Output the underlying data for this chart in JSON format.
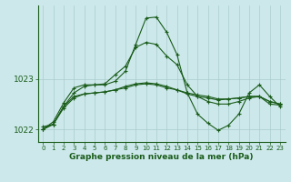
{
  "x": [
    0,
    1,
    2,
    3,
    4,
    5,
    6,
    7,
    8,
    9,
    10,
    11,
    12,
    13,
    14,
    15,
    16,
    17,
    18,
    19,
    20,
    21,
    22,
    23
  ],
  "line1": [
    1022.05,
    1022.1,
    1022.45,
    1022.65,
    1022.7,
    1022.72,
    1022.74,
    1022.78,
    1022.82,
    1022.88,
    1022.9,
    1022.88,
    1022.82,
    1022.78,
    1022.72,
    1022.68,
    1022.65,
    1022.6,
    1022.6,
    1022.62,
    1022.65,
    1022.65,
    1022.55,
    1022.5
  ],
  "line2": [
    1022.0,
    1022.1,
    1022.42,
    1022.62,
    1022.7,
    1022.72,
    1022.74,
    1022.78,
    1022.85,
    1022.9,
    1022.92,
    1022.9,
    1022.85,
    1022.78,
    1022.7,
    1022.65,
    1022.62,
    1022.58,
    1022.6,
    1022.62,
    1022.65,
    1022.65,
    1022.55,
    1022.5
  ],
  "line3": [
    1022.0,
    1022.15,
    1022.52,
    1022.82,
    1022.88,
    1022.88,
    1022.9,
    1023.08,
    1023.25,
    1023.62,
    1023.72,
    1023.68,
    1023.45,
    1023.28,
    1022.88,
    1022.65,
    1022.55,
    1022.5,
    1022.5,
    1022.55,
    1022.62,
    1022.65,
    1022.5,
    1022.48
  ],
  "line4": [
    1022.0,
    1022.1,
    1022.45,
    1022.72,
    1022.85,
    1022.88,
    1022.88,
    1022.95,
    1023.15,
    1023.68,
    1024.2,
    1024.22,
    1023.92,
    1023.48,
    1022.72,
    1022.3,
    1022.12,
    1021.98,
    1022.08,
    1022.3,
    1022.72,
    1022.88,
    1022.65,
    1022.45
  ],
  "line_color": "#1a5c1a",
  "bg_color": "#cce8ea",
  "grid_color": "#aacccc",
  "xlabel": "Graphe pression niveau de la mer (hPa)",
  "ylim": [
    1021.75,
    1024.45
  ],
  "yticks": [
    1022,
    1023
  ],
  "xlim": [
    -0.5,
    23.5
  ],
  "marker_size": 3,
  "linewidth": 0.8,
  "tick_fontsize": 5,
  "xlabel_fontsize": 6.5
}
